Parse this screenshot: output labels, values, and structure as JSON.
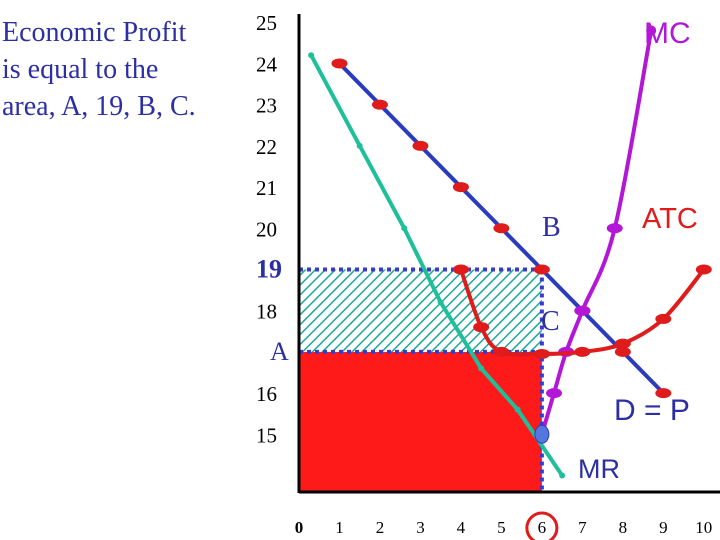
{
  "caption": [
    "Economic Profit",
    "is equal to the",
    "area, A, 19, B, C."
  ],
  "chart_data": {
    "type": "line",
    "title": "",
    "xlabel": "",
    "ylabel": "",
    "xlim": [
      0,
      10.4
    ],
    "ylim": [
      13.6,
      25.2
    ],
    "x_ticks": [
      "0",
      "1",
      "2",
      "3",
      "4",
      "5",
      "6",
      "7",
      "8",
      "9",
      "10"
    ],
    "y_ticks": [
      {
        "value": 25,
        "label": "25"
      },
      {
        "value": 24,
        "label": "24"
      },
      {
        "value": 23,
        "label": "23"
      },
      {
        "value": 22,
        "label": "22"
      },
      {
        "value": 21,
        "label": "21"
      },
      {
        "value": 20,
        "label": "20"
      },
      {
        "value": 19,
        "label": "19"
      },
      {
        "value": 18,
        "label": "18"
      },
      {
        "value": 17,
        "label": "A"
      },
      {
        "value": 16,
        "label": "16"
      },
      {
        "value": 15,
        "label": "15"
      }
    ],
    "series": [
      {
        "name": "D = P",
        "color": "#2b3bbf",
        "points": [
          [
            1,
            24
          ],
          [
            2,
            23
          ],
          [
            3,
            22
          ],
          [
            4,
            21
          ],
          [
            5,
            20
          ],
          [
            6,
            19
          ],
          [
            7,
            18
          ],
          [
            8,
            17
          ],
          [
            9,
            16
          ]
        ]
      },
      {
        "name": "MR",
        "color": "#1fbf9a",
        "points": [
          [
            0.3,
            24.2
          ],
          [
            1.5,
            22
          ],
          [
            2.6,
            20
          ],
          [
            3.5,
            18.2
          ],
          [
            4.5,
            16.6
          ],
          [
            5.4,
            15.6
          ],
          [
            6.5,
            14
          ]
        ]
      },
      {
        "name": "MC",
        "color": "#b316d6",
        "points": [
          [
            6,
            15
          ],
          [
            6.3,
            16
          ],
          [
            6.6,
            17
          ],
          [
            7,
            18
          ],
          [
            7.8,
            20
          ],
          [
            8.7,
            24.8
          ]
        ]
      },
      {
        "name": "ATC",
        "color": "#e01b1b",
        "points": [
          [
            4,
            19
          ],
          [
            4.5,
            17.6
          ],
          [
            5,
            17
          ],
          [
            6,
            16.95
          ],
          [
            7,
            17
          ],
          [
            8,
            17.2
          ],
          [
            9,
            17.8
          ],
          [
            10,
            19
          ]
        ]
      }
    ],
    "price": 19,
    "atc_at_q": 17,
    "quantity": 6,
    "highlight_tick": "6",
    "annotations": [
      "MC",
      "ATC",
      "B",
      "C",
      "D = P",
      "MR"
    ],
    "colors": {
      "demand": "#2b3bbf",
      "mr": "#1fbf9a",
      "mc": "#b316d6",
      "atc": "#e01b1b",
      "profit_hatch": "#1aa89a",
      "cost_fill": "#ff1a1a",
      "guide": "#3a3ad0",
      "text_blue": "#2b2fa3"
    }
  }
}
